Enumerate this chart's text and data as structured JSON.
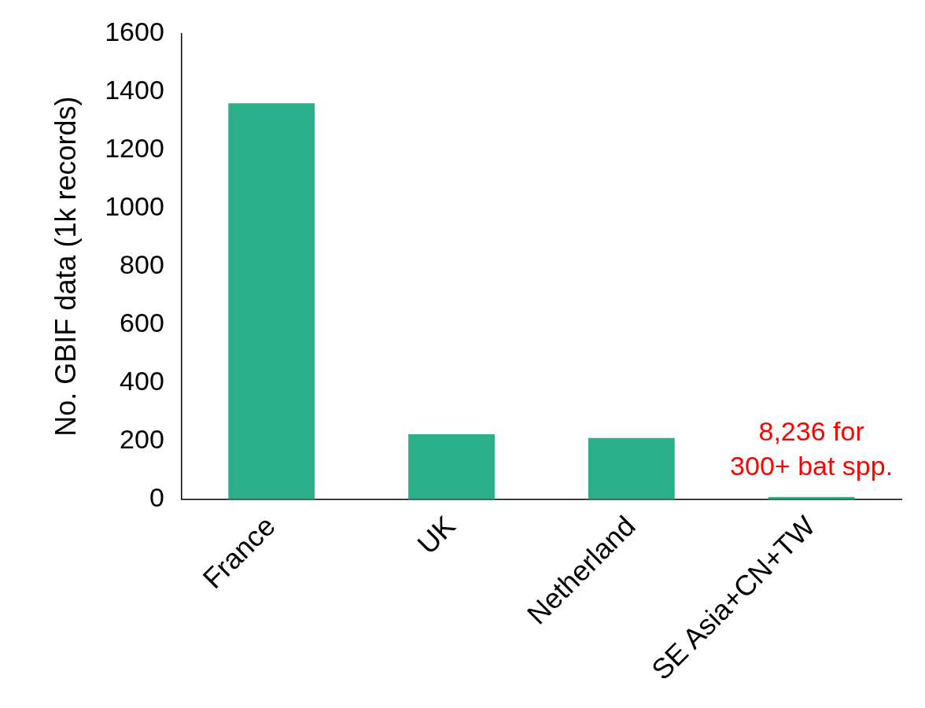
{
  "chart_data": {
    "type": "bar",
    "ylabel": "No. GBIF data (1k records)",
    "categories": [
      "France",
      "UK",
      "Netherland",
      "SE Asia+CN+TW"
    ],
    "values": [
      1360,
      224,
      211,
      8.236
    ],
    "color": "#2bae8a",
    "ylim": [
      0,
      1600
    ],
    "yticks": [
      0,
      200,
      400,
      600,
      800,
      1000,
      1200,
      1400,
      1600
    ],
    "grid": false,
    "annotations": [
      {
        "text": "8,236 for\n300+ bat spp.",
        "x": "SE Asia+CN+TW",
        "y": 8.236
      }
    ]
  }
}
